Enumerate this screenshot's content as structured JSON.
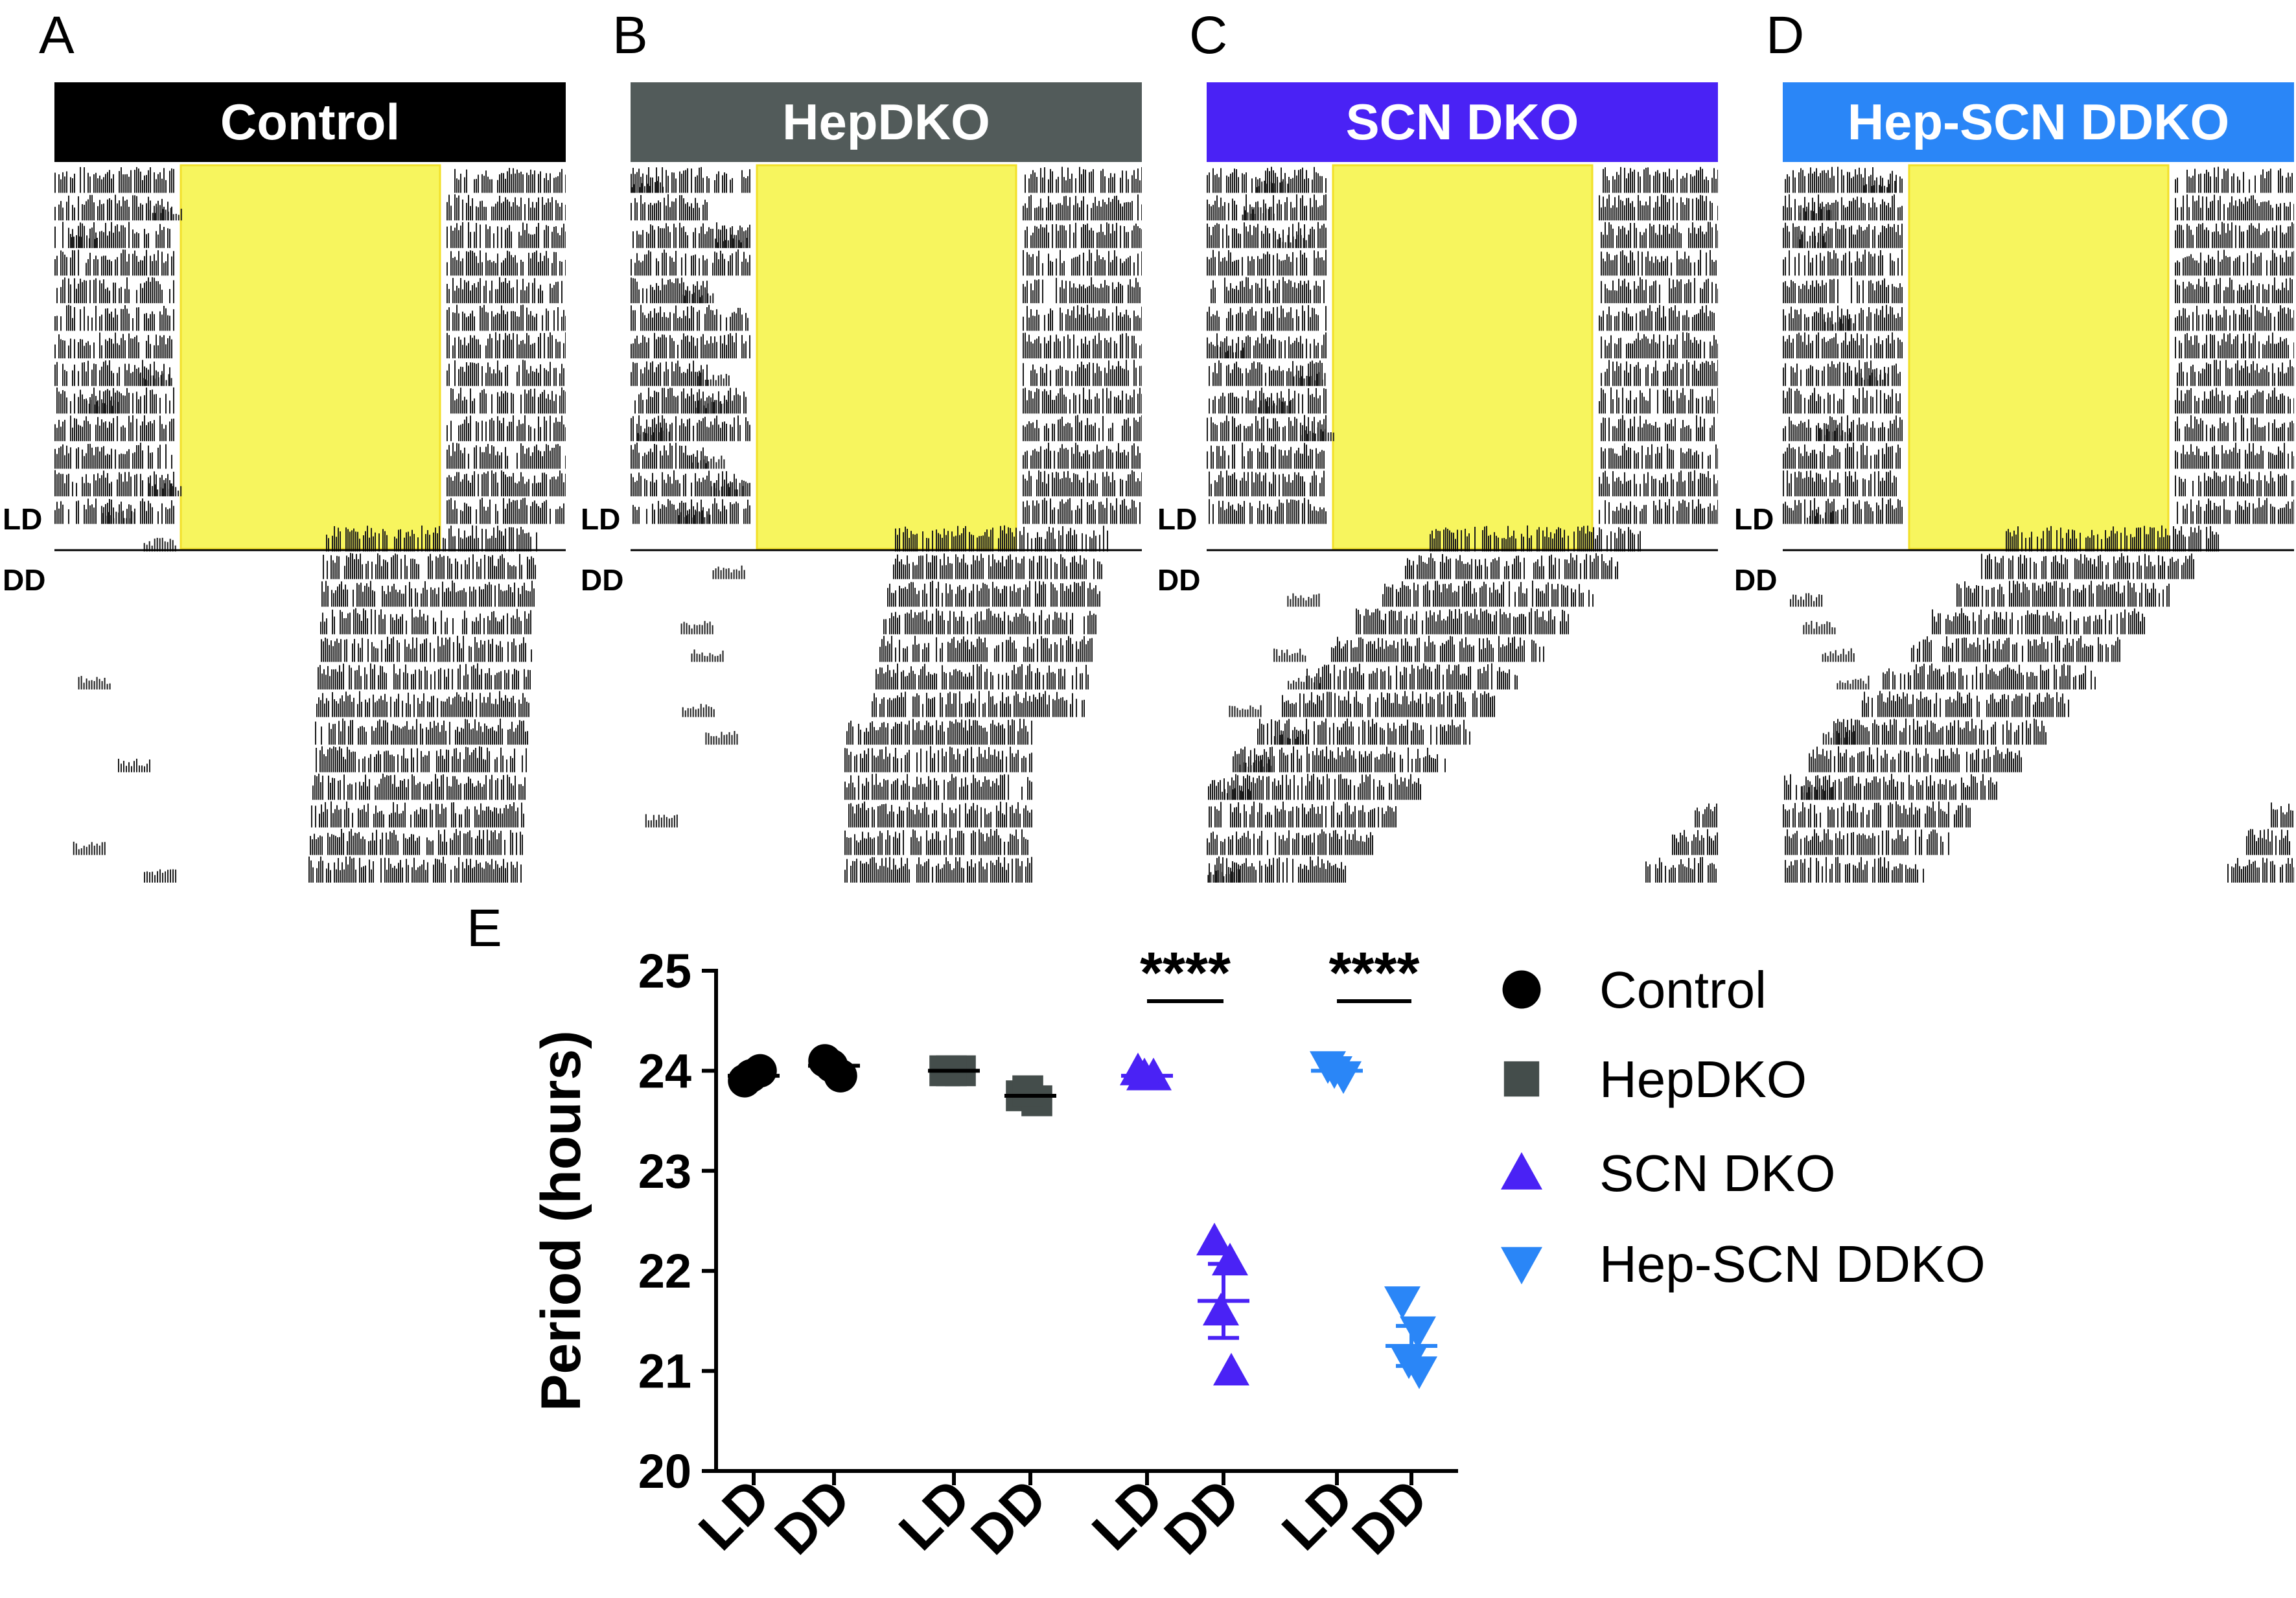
{
  "panels": [
    {
      "letter": "A",
      "title": "Control",
      "color": "#000000",
      "ld_label": "LD",
      "dd_label": "DD"
    },
    {
      "letter": "B",
      "title": "HepDKO",
      "color": "#525b5a",
      "ld_label": "LD",
      "dd_label": "DD"
    },
    {
      "letter": "C",
      "title": "SCN DKO",
      "color": "#4a22f5",
      "ld_label": "LD",
      "dd_label": "DD"
    },
    {
      "letter": "D",
      "title": "Hep-SCN DDKO",
      "color": "#2a86f7",
      "ld_label": "LD",
      "dd_label": "DD"
    }
  ],
  "colors": {
    "light_phase": "#f7f55e",
    "light_edge": "#f2e028",
    "activity": "#1a1a1a"
  },
  "chart_data": {
    "panel_letter": "E",
    "type": "scatter",
    "ylabel": "Period (hours)",
    "xlabel": "",
    "ylim": [
      20,
      25
    ],
    "yticks": [
      20,
      21,
      22,
      23,
      24,
      25
    ],
    "categories": [
      "LD",
      "DD",
      "LD",
      "DD",
      "LD",
      "DD",
      "LD",
      "DD"
    ],
    "series": [
      {
        "name": "Control",
        "color": "#000000",
        "marker": "circle",
        "groups": [
          {
            "condition": "LD",
            "points": [
              23.9,
              24.0,
              23.95
            ],
            "mean": 23.95,
            "sem": 0.03
          },
          {
            "condition": "DD",
            "points": [
              24.1,
              23.95,
              24.05
            ],
            "mean": 24.05,
            "sem": 0.05
          }
        ]
      },
      {
        "name": "HepDKO",
        "color": "#444d4b",
        "marker": "square",
        "groups": [
          {
            "condition": "LD",
            "points": [
              24.0,
              24.0,
              24.0
            ],
            "mean": 24.0,
            "sem": 0.01
          },
          {
            "condition": "DD",
            "points": [
              23.75,
              23.7,
              23.8
            ],
            "mean": 23.75,
            "sem": 0.03
          }
        ]
      },
      {
        "name": "SCN DKO",
        "color": "#4a22f5",
        "marker": "triangle",
        "groups": [
          {
            "condition": "LD",
            "points": [
              24.0,
              23.95,
              23.95
            ],
            "mean": 23.95,
            "sem": 0.02
          },
          {
            "condition": "DD",
            "points": [
              22.3,
              22.1,
              21.6,
              21.0
            ],
            "mean": 21.7,
            "sem": 0.37
          }
        ]
      },
      {
        "name": "Hep-SCN DDKO",
        "color": "#2a86f7",
        "marker": "triangle-down",
        "groups": [
          {
            "condition": "LD",
            "points": [
              24.05,
              23.95,
              24.0
            ],
            "mean": 24.0,
            "sem": 0.03
          },
          {
            "condition": "DD",
            "points": [
              21.7,
              21.4,
              21.1,
              21.0
            ],
            "mean": 21.25,
            "sem": 0.2
          }
        ]
      }
    ],
    "annotations": [
      {
        "series": "SCN DKO",
        "text": "****"
      },
      {
        "series": "Hep-SCN DDKO",
        "text": "****"
      }
    ],
    "legend": {
      "placement": "right",
      "entries": [
        "Control",
        "HepDKO",
        "SCN DKO",
        "Hep-SCN DDKO"
      ]
    }
  }
}
